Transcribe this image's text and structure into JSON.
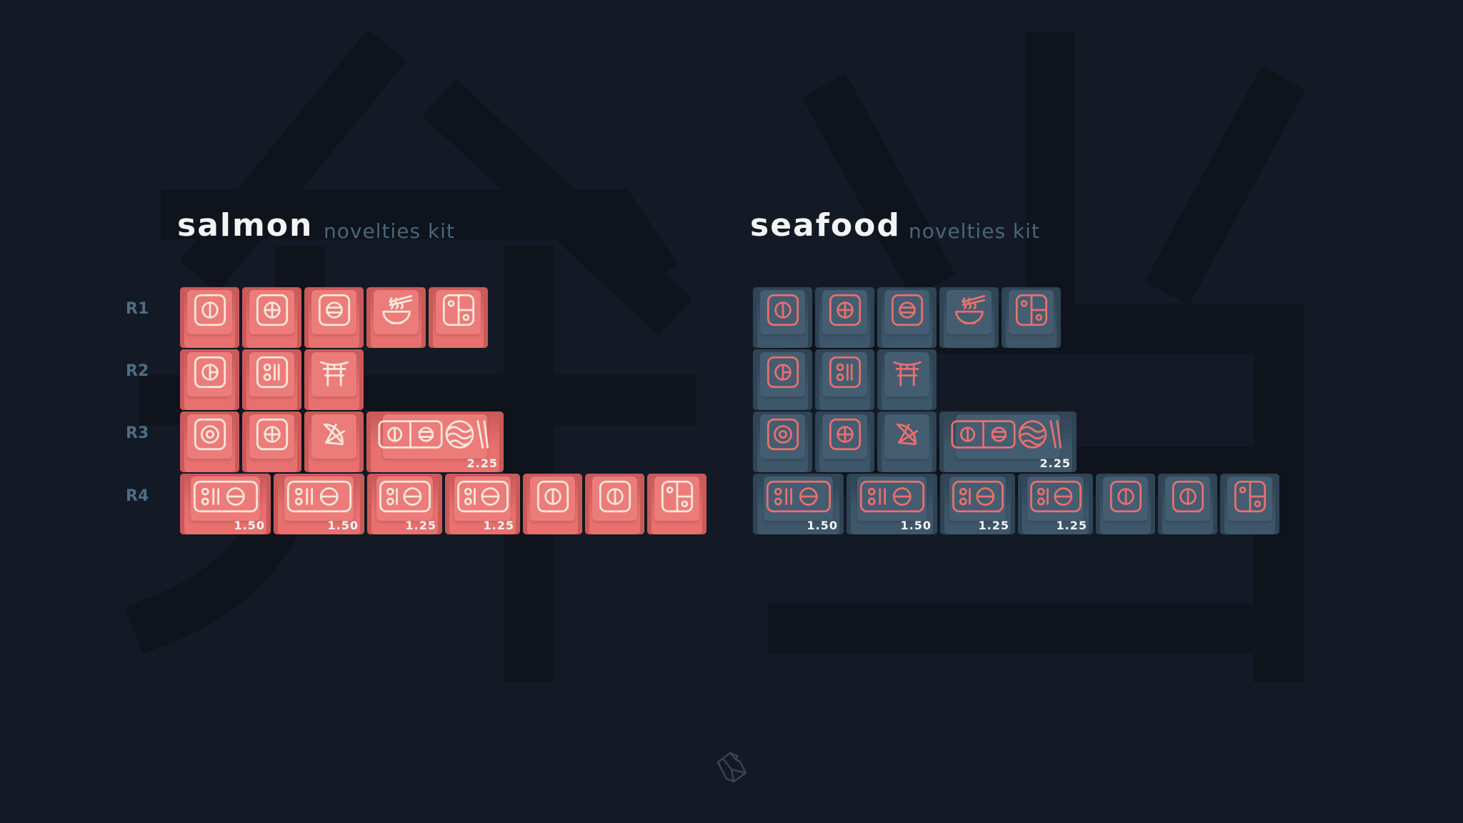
{
  "background_glyphs": [
    "弁",
    "当"
  ],
  "row_labels": [
    "R1",
    "R2",
    "R3",
    "R4"
  ],
  "kits": [
    {
      "title": "salmon",
      "subtitle": "novelties kit",
      "colors": {
        "cap": "#e8706e",
        "cap_dark": "#c95a59",
        "cap_top": "#ec7c79",
        "legend": "#f7e8dc"
      },
      "rows": [
        [
          {
            "icon": "circle-vertical-icon",
            "u": 1
          },
          {
            "icon": "circle-cross-icon",
            "u": 1
          },
          {
            "icon": "circle-horizontal-icon",
            "u": 1
          },
          {
            "icon": "ramen-bowl-icon",
            "u": 1
          },
          {
            "icon": "bento-box-icon",
            "u": 1
          }
        ],
        [
          {
            "icon": "circle-half-icon",
            "u": 1
          },
          {
            "icon": "dots-bars-icon",
            "u": 1
          },
          {
            "icon": "torii-gate-icon",
            "u": 1
          }
        ],
        [
          {
            "icon": "target-icon",
            "u": 1
          },
          {
            "icon": "circle-cross-icon",
            "u": 1
          },
          {
            "icon": "lemon-slice-icon",
            "u": 1
          },
          {
            "icon": "sushi-platter-icon",
            "u": 2.25,
            "size": "2.25"
          }
        ],
        [
          {
            "icon": "nigiri-set-icon",
            "u": 1.5,
            "size": "1.50"
          },
          {
            "icon": "nigiri-set-icon",
            "u": 1.5,
            "size": "1.50"
          },
          {
            "icon": "nigiri-set-small-icon",
            "u": 1.25,
            "size": "1.25"
          },
          {
            "icon": "nigiri-set-small-icon",
            "u": 1.25,
            "size": "1.25"
          },
          {
            "icon": "circle-vertical-icon",
            "u": 1
          },
          {
            "icon": "circle-vertical-icon",
            "u": 1
          },
          {
            "icon": "bento-box-icon",
            "u": 1
          }
        ]
      ]
    },
    {
      "title": "seafood",
      "subtitle": "novelties kit",
      "colors": {
        "cap": "#3e5669",
        "cap_dark": "#2f4454",
        "cap_top": "#445d71",
        "legend": "#e8706e"
      },
      "rows": [
        [
          {
            "icon": "circle-vertical-icon",
            "u": 1
          },
          {
            "icon": "circle-cross-icon",
            "u": 1
          },
          {
            "icon": "circle-horizontal-icon",
            "u": 1
          },
          {
            "icon": "ramen-bowl-icon",
            "u": 1
          },
          {
            "icon": "bento-box-icon",
            "u": 1
          }
        ],
        [
          {
            "icon": "circle-half-icon",
            "u": 1
          },
          {
            "icon": "dots-bars-icon",
            "u": 1
          },
          {
            "icon": "torii-gate-icon",
            "u": 1
          }
        ],
        [
          {
            "icon": "target-icon",
            "u": 1
          },
          {
            "icon": "circle-cross-icon",
            "u": 1
          },
          {
            "icon": "lemon-slice-icon",
            "u": 1
          },
          {
            "icon": "sushi-platter-icon",
            "u": 2.25,
            "size": "2.25"
          }
        ],
        [
          {
            "icon": "nigiri-set-icon",
            "u": 1.5,
            "size": "1.50"
          },
          {
            "icon": "nigiri-set-icon",
            "u": 1.5,
            "size": "1.50"
          },
          {
            "icon": "nigiri-set-small-icon",
            "u": 1.25,
            "size": "1.25"
          },
          {
            "icon": "nigiri-set-small-icon",
            "u": 1.25,
            "size": "1.25"
          },
          {
            "icon": "circle-vertical-icon",
            "u": 1
          },
          {
            "icon": "circle-vertical-icon",
            "u": 1
          },
          {
            "icon": "bento-box-icon",
            "u": 1
          }
        ]
      ]
    }
  ],
  "footer": {
    "logo": "keycap-logo-icon"
  }
}
